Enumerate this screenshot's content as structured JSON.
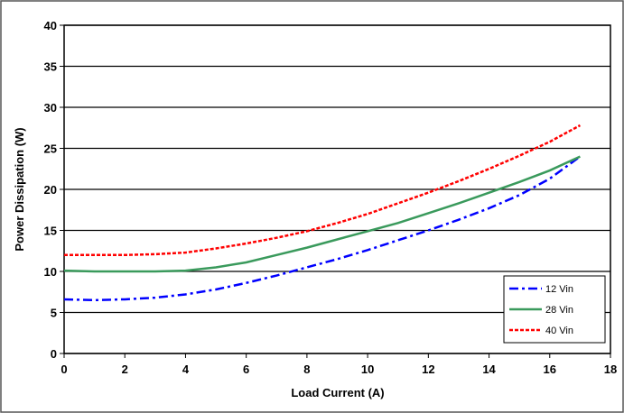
{
  "chart_data": {
    "type": "line",
    "x_label": "Load Current (A)",
    "y_label": "Power Dissipation (W)",
    "x": [
      0,
      1,
      2,
      3,
      4,
      5,
      6,
      7,
      8,
      9,
      10,
      11,
      12,
      13,
      14,
      15,
      16,
      17
    ],
    "series": [
      {
        "name": "12 Vin",
        "color": "#0000ff",
        "style": "dashdot",
        "values": [
          6.6,
          6.5,
          6.6,
          6.8,
          7.2,
          7.8,
          8.6,
          9.5,
          10.5,
          11.5,
          12.6,
          13.8,
          15.0,
          16.3,
          17.7,
          19.3,
          21.3,
          24.0
        ]
      },
      {
        "name": "28 Vin",
        "color": "#3a9a5c",
        "style": "solid",
        "values": [
          10.1,
          10.0,
          10.0,
          10.0,
          10.1,
          10.5,
          11.1,
          12.0,
          12.9,
          13.9,
          14.9,
          15.9,
          17.1,
          18.3,
          19.6,
          20.9,
          22.3,
          24.0
        ]
      },
      {
        "name": "40 Vin",
        "color": "#ff0000",
        "style": "dotted",
        "values": [
          12.0,
          12.0,
          12.0,
          12.1,
          12.3,
          12.8,
          13.4,
          14.1,
          14.9,
          15.9,
          17.0,
          18.3,
          19.6,
          21.0,
          22.5,
          24.1,
          25.8,
          27.8
        ]
      }
    ],
    "xlim": [
      0,
      18
    ],
    "xticks": [
      0,
      2,
      4,
      6,
      8,
      10,
      12,
      14,
      16,
      18
    ],
    "ylim": [
      0,
      40
    ],
    "yticks": [
      0,
      5,
      10,
      15,
      20,
      25,
      30,
      35,
      40
    ],
    "grid": true,
    "legend": "lower right"
  }
}
